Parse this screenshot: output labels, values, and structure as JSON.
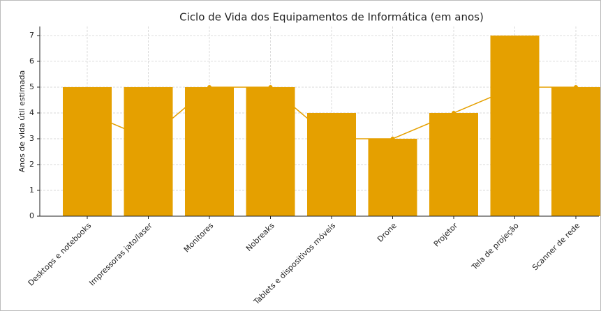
{
  "chart_data": {
    "type": "bar",
    "title": "Ciclo de Vida dos Equipamentos de Informática (em anos)",
    "y_label": "Anos de vida útil estimada",
    "categories": [
      "Desktops e notebooks",
      "Impressoras jato/laser",
      "Monitores",
      "Nobreaks",
      "Tablets e dispositivos móveis",
      "Drone",
      "Projetor",
      "Tela de projeção",
      "Scanner de rede"
    ],
    "series": [
      {
        "type": "bar",
        "color": "#e5a000",
        "values": [
          5,
          5,
          5,
          5,
          4,
          3,
          4,
          7,
          5
        ]
      },
      {
        "type": "line",
        "color": "#e5a000",
        "values": [
          4,
          3,
          5,
          5,
          3,
          3,
          4,
          5,
          5
        ]
      }
    ],
    "ylim": [
      0,
      7.35
    ],
    "yticks": [
      0,
      1,
      2,
      3,
      4,
      5,
      6,
      7
    ],
    "grid": true
  }
}
